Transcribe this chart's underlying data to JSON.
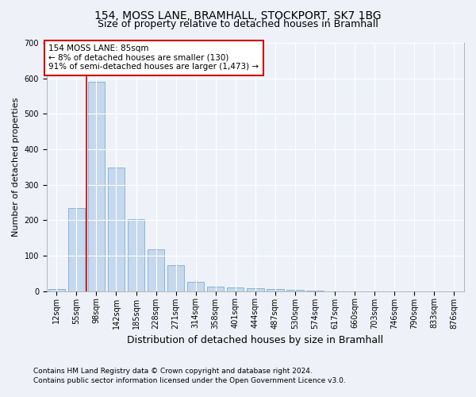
{
  "title1": "154, MOSS LANE, BRAMHALL, STOCKPORT, SK7 1BG",
  "title2": "Size of property relative to detached houses in Bramhall",
  "xlabel": "Distribution of detached houses by size in Bramhall",
  "ylabel": "Number of detached properties",
  "categories": [
    "12sqm",
    "55sqm",
    "98sqm",
    "142sqm",
    "185sqm",
    "228sqm",
    "271sqm",
    "314sqm",
    "358sqm",
    "401sqm",
    "444sqm",
    "487sqm",
    "530sqm",
    "574sqm",
    "617sqm",
    "660sqm",
    "703sqm",
    "746sqm",
    "790sqm",
    "833sqm",
    "876sqm"
  ],
  "values": [
    5,
    235,
    590,
    348,
    202,
    117,
    73,
    25,
    13,
    10,
    8,
    5,
    4,
    1,
    0,
    0,
    0,
    0,
    0,
    0,
    0
  ],
  "bar_color": "#c5d8ed",
  "bar_edge_color": "#7aadd4",
  "vline_x_index": 1.5,
  "annotation_text": "154 MOSS LANE: 85sqm\n← 8% of detached houses are smaller (130)\n91% of semi-detached houses are larger (1,473) →",
  "annotation_box_color": "#ffffff",
  "annotation_box_edge": "#cc0000",
  "ylim": [
    0,
    700
  ],
  "yticks": [
    0,
    100,
    200,
    300,
    400,
    500,
    600,
    700
  ],
  "footnote1": "Contains HM Land Registry data © Crown copyright and database right 2024.",
  "footnote2": "Contains public sector information licensed under the Open Government Licence v3.0.",
  "background_color": "#eef2f8",
  "plot_bg_color": "#eef2f8",
  "grid_color": "#ffffff",
  "title1_fontsize": 10,
  "title2_fontsize": 9,
  "tick_fontsize": 7,
  "ylabel_fontsize": 8,
  "xlabel_fontsize": 9,
  "footnote_fontsize": 6.5
}
